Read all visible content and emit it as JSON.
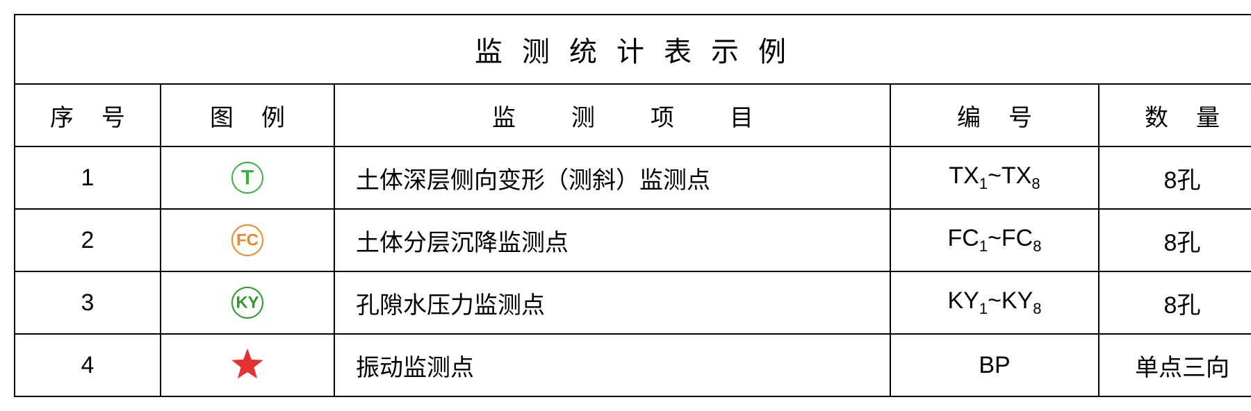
{
  "title": "监测统计表示例",
  "headers": {
    "seq": "序号",
    "legend": "图例",
    "item": "监测项目",
    "code": "编号",
    "qty": "数量"
  },
  "rows": [
    {
      "seq": "1",
      "legend": {
        "type": "circle-text",
        "text": "T",
        "color": "#3cb043",
        "stroke_width": 2
      },
      "item": "土体深层侧向变形（测斜）监测点",
      "code_prefix": "TX",
      "code_sub1": "1",
      "code_mid": "~TX",
      "code_sub2": "8",
      "qty": "8孔"
    },
    {
      "seq": "2",
      "legend": {
        "type": "circle-text",
        "text": "FC",
        "color": "#e58a2e",
        "stroke_width": 2
      },
      "item": "土体分层沉降监测点",
      "code_prefix": "FC",
      "code_sub1": "1",
      "code_mid": "~FC",
      "code_sub2": "8",
      "qty": "8孔"
    },
    {
      "seq": "3",
      "legend": {
        "type": "circle-text",
        "text": "KY",
        "color": "#2e9a2e",
        "stroke_width": 2
      },
      "item": "孔隙水压力监测点",
      "code_prefix": "KY",
      "code_sub1": "1",
      "code_mid": "~KY",
      "code_sub2": "8",
      "qty": "8孔"
    },
    {
      "seq": "4",
      "legend": {
        "type": "star",
        "color": "#e53131"
      },
      "item": "振动监测点",
      "code_plain": "BP",
      "qty": "单点三向"
    }
  ],
  "style": {
    "border_color": "#000000",
    "background_color": "#ffffff",
    "title_fontsize": 40,
    "header_fontsize": 34,
    "cell_fontsize": 34,
    "sub_fontsize": 22,
    "col_widths": {
      "seq": 210,
      "legend": 250,
      "item": 800,
      "code": 300,
      "qty": 240
    },
    "title_letter_spacing": 28,
    "header_2char_spacing": 40,
    "header_4char_spacing": 80
  }
}
